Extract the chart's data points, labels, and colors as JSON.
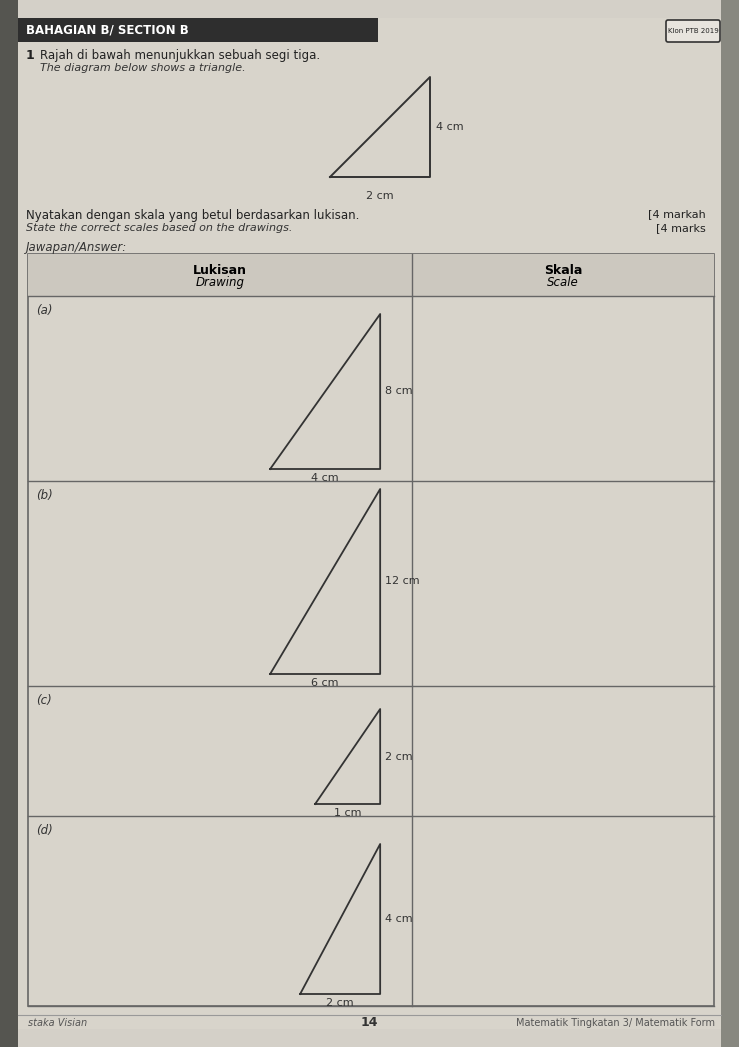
{
  "page_bg": "#d4d0c8",
  "header_text": "BAHAGIAN B/ SECTION B",
  "q_number": "1",
  "q_malay": "Rajah di bawah menunjukkan sebuah segi tiga.",
  "q_english": "The diagram below shows a triangle.",
  "instruction_malay": "Nyatakan dengan skala yang betul berdasarkan lukisan.",
  "instruction_english": "State the correct scales based on the drawings.",
  "marks_text": "[4 markah",
  "marks_text2": "[4 marks",
  "answer_label": "Jawapan/Answer:",
  "table_header_left": "Lukisan",
  "table_header_left_sub": "Drawing",
  "table_header_right": "Skala",
  "table_header_right_sub": "Scale",
  "rows": [
    "(a)",
    "(b)",
    "(c)",
    "(d)"
  ],
  "row_triangles": [
    {
      "bw": 110,
      "bh": 155,
      "lb": "4 cm",
      "lh": "8 cm"
    },
    {
      "bw": 110,
      "bh": 185,
      "lb": "6 cm",
      "lh": "12 cm"
    },
    {
      "bw": 65,
      "bh": 95,
      "lb": "1 cm",
      "lh": "2 cm"
    },
    {
      "bw": 80,
      "bh": 150,
      "lb": "2 cm",
      "lh": "4 cm"
    }
  ],
  "intro_base_label": "2 cm",
  "intro_height_label": "4 cm",
  "footer_left": "staka Visian",
  "footer_center": "14",
  "footer_right": "Matematik Tingkatan 3/ Matematik Form",
  "klon_text": "Klon PTB 2019"
}
